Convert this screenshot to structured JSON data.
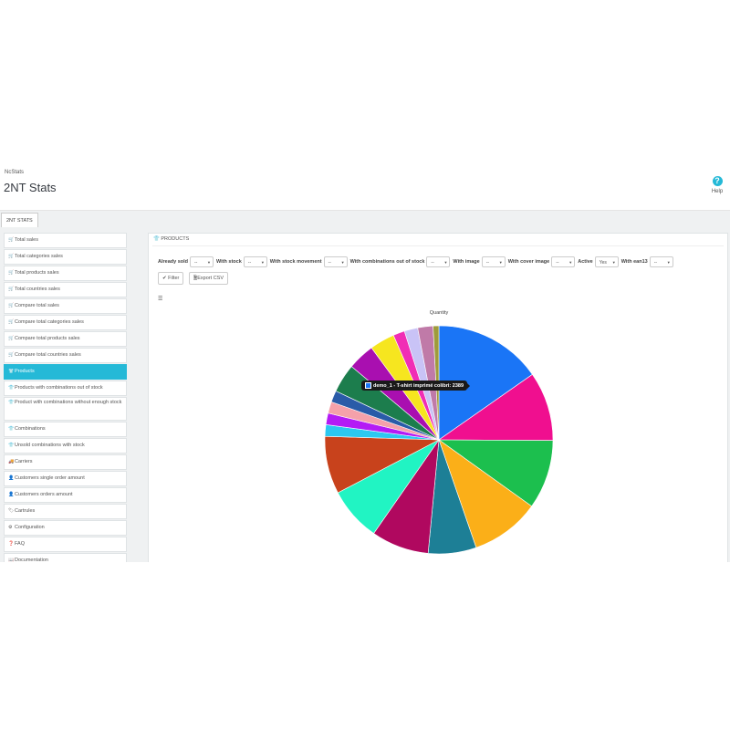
{
  "header": {
    "breadcrumb": "NcStats",
    "title": "2NT Stats",
    "help_label": "Help"
  },
  "tab": {
    "label": "2NT STATS"
  },
  "sidebar": {
    "items": [
      {
        "label": "Total sales",
        "icon": "cart-icon"
      },
      {
        "label": "Total categories sales",
        "icon": "cart-icon"
      },
      {
        "label": "Total products sales",
        "icon": "cart-icon"
      },
      {
        "label": "Total countries sales",
        "icon": "cart-icon"
      },
      {
        "label": "Compare total sales",
        "icon": "cart-icon"
      },
      {
        "label": "Compare total categories sales",
        "icon": "cart-icon"
      },
      {
        "label": "Compare total products sales",
        "icon": "cart-icon"
      },
      {
        "label": "Compare total countries sales",
        "icon": "cart-icon"
      },
      {
        "label": "Products",
        "icon": "tshirt-icon",
        "active": true
      },
      {
        "label": "Products with combinations out of stock",
        "icon": "tshirt-icon"
      },
      {
        "label": "Product with combinations without enough stock",
        "icon": "tshirt-icon"
      },
      {
        "label": "Combinations",
        "icon": "tshirt-icon"
      },
      {
        "label": "Unsold combinations with stock",
        "icon": "tshirt-icon"
      },
      {
        "label": "Carriers",
        "icon": "truck-icon"
      },
      {
        "label": "Customers single order amount",
        "icon": "user-icon"
      },
      {
        "label": "Customers orders amount",
        "icon": "user-icon"
      },
      {
        "label": "Cartrules",
        "icon": "tag-icon"
      },
      {
        "label": "Configuration",
        "icon": "gears-icon"
      },
      {
        "label": "FAQ",
        "icon": "question-icon"
      },
      {
        "label": "Documentation",
        "icon": "book-icon"
      }
    ]
  },
  "panel": {
    "heading": "PRODUCTS",
    "filters": [
      {
        "label": "Already sold",
        "value": "--"
      },
      {
        "label": "With stock",
        "value": "--"
      },
      {
        "label": "With stock movement",
        "value": "--"
      },
      {
        "label": "With combinations out of stock",
        "value": "--"
      },
      {
        "label": "With image",
        "value": "--"
      },
      {
        "label": "With cover image",
        "value": "--"
      },
      {
        "label": "Active",
        "value": "Yes"
      },
      {
        "label": "With ean13",
        "value": "--"
      }
    ],
    "filter_button": "Filter",
    "export_button": "Export CSV"
  },
  "tooltip": {
    "text": "demo_1 - T-shirt imprimé colibri: 2389"
  },
  "chart_data": {
    "type": "pie",
    "title": "Quantity",
    "tooltip": "demo_1 - T-shirt imprimé colibri: 2389",
    "slices": [
      {
        "label": "demo_1 - T-shirt imprimé colibri",
        "value": 2389,
        "color": "#1a75f6"
      },
      {
        "label": "",
        "value": 1533,
        "color": "#f00f8f"
      },
      {
        "label": "",
        "value": 1533,
        "color": "#1cbf4e"
      },
      {
        "label": "",
        "value": 1534,
        "color": "#fbaf18"
      },
      {
        "label": "",
        "value": 1065,
        "color": "#1d7f96"
      },
      {
        "label": "",
        "value": 1278,
        "color": "#b0085f"
      },
      {
        "label": "",
        "value": 1193,
        "color": "#21f4c3"
      },
      {
        "label": "",
        "value": 1278,
        "color": "#c8421c"
      },
      {
        "label": "",
        "value": 256,
        "color": "#2cc8f0"
      },
      {
        "label": "",
        "value": 256,
        "color": "#b41bf5"
      },
      {
        "label": "",
        "value": 256,
        "color": "#f5a1aa"
      },
      {
        "label": "",
        "value": 256,
        "color": "#2a5ba8"
      },
      {
        "label": "",
        "value": 638,
        "color": "#1c7d4d"
      },
      {
        "label": "",
        "value": 596,
        "color": "#a90fb0"
      },
      {
        "label": "",
        "value": 554,
        "color": "#f6e61f"
      },
      {
        "label": "",
        "value": 255,
        "color": "#f02eb5"
      },
      {
        "label": "",
        "value": 298,
        "color": "#c9c3f6"
      },
      {
        "label": "",
        "value": 339,
        "color": "#c07aa8"
      },
      {
        "label": "",
        "value": 128,
        "color": "#9e9b3c"
      }
    ]
  }
}
